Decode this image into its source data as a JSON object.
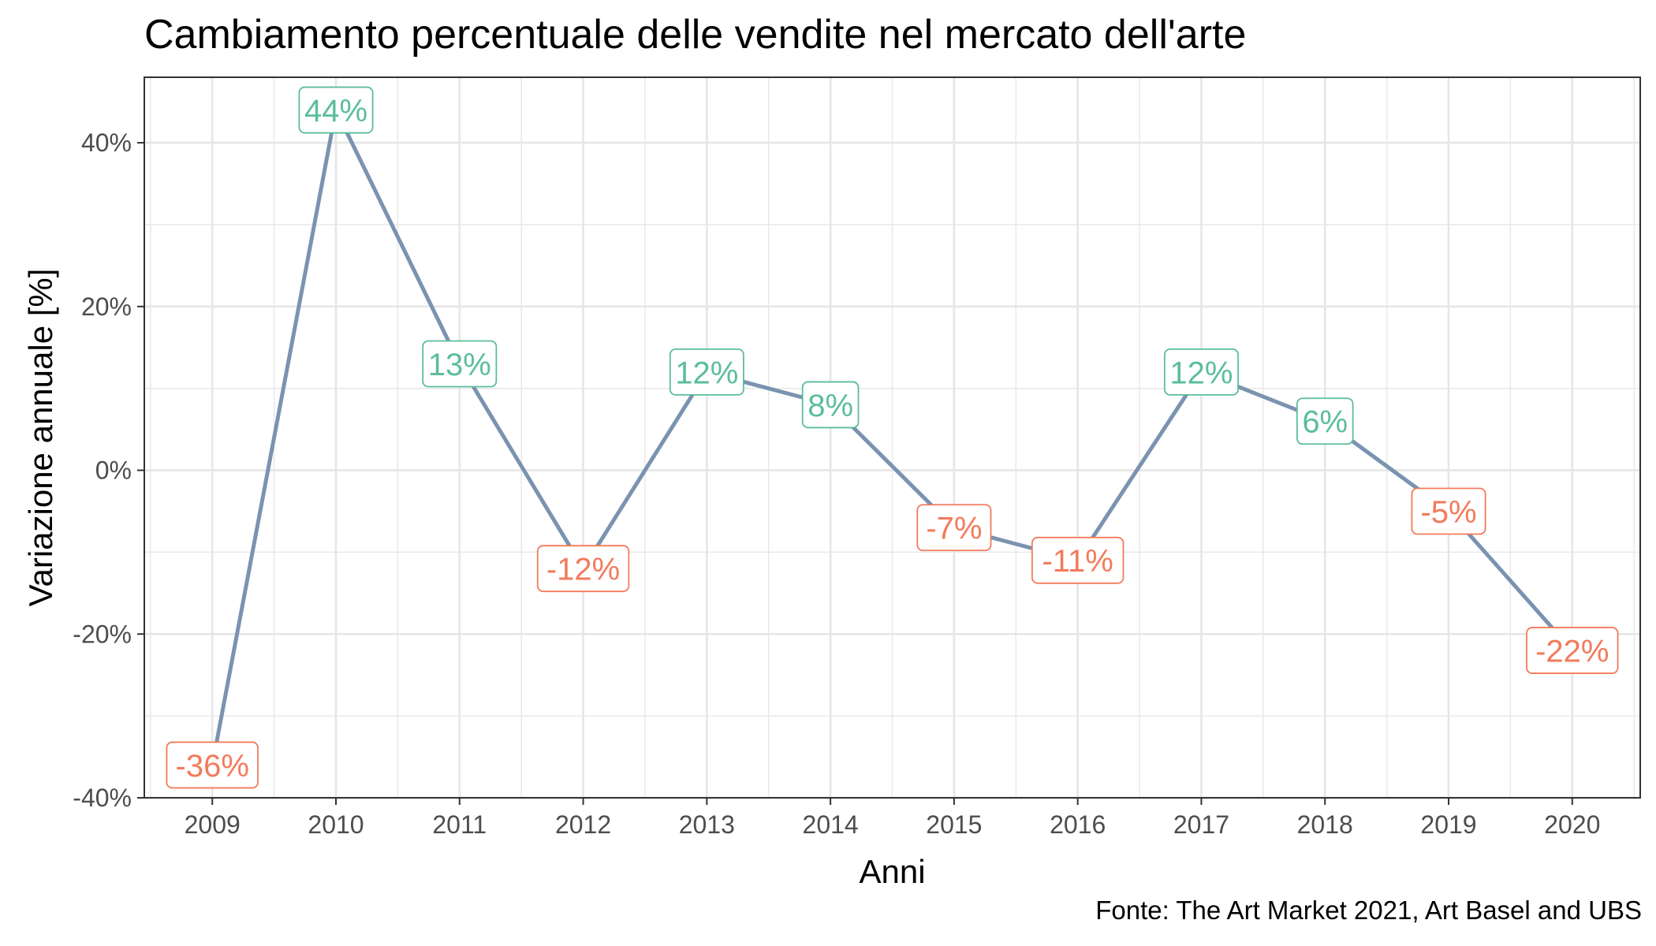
{
  "chart_data": {
    "type": "line",
    "title": "Cambiamento percentuale delle vendite nel mercato dell'arte",
    "xlabel": "Anni",
    "ylabel": "Variazione annuale [%]",
    "caption": "Fonte: The Art Market 2021, Art Basel and UBS",
    "x": [
      "2009",
      "2010",
      "2011",
      "2012",
      "2013",
      "2014",
      "2015",
      "2016",
      "2017",
      "2018",
      "2019",
      "2020"
    ],
    "series": [
      {
        "values": [
          -36,
          44,
          13,
          -12,
          12,
          8,
          -7,
          -11,
          12,
          6,
          -5,
          -22
        ]
      }
    ],
    "data_labels": [
      "-36%",
      "44%",
      "13%",
      "-12%",
      "12%",
      "8%",
      "-7%",
      "-11%",
      "12%",
      "6%",
      "-5%",
      "-22%"
    ],
    "ylim": [
      -40,
      48
    ],
    "yticks": [
      -40,
      -20,
      0,
      20,
      40
    ],
    "ytick_labels": [
      "-40%",
      "-20%",
      "0%",
      "20%",
      "40%"
    ],
    "grid": true,
    "legend": "none",
    "colors": {
      "line": "#7A93B0",
      "positive": "#5BBE99",
      "negative": "#F27B5B",
      "grid": "#E6E6E6",
      "panel_border": "#333333"
    }
  }
}
